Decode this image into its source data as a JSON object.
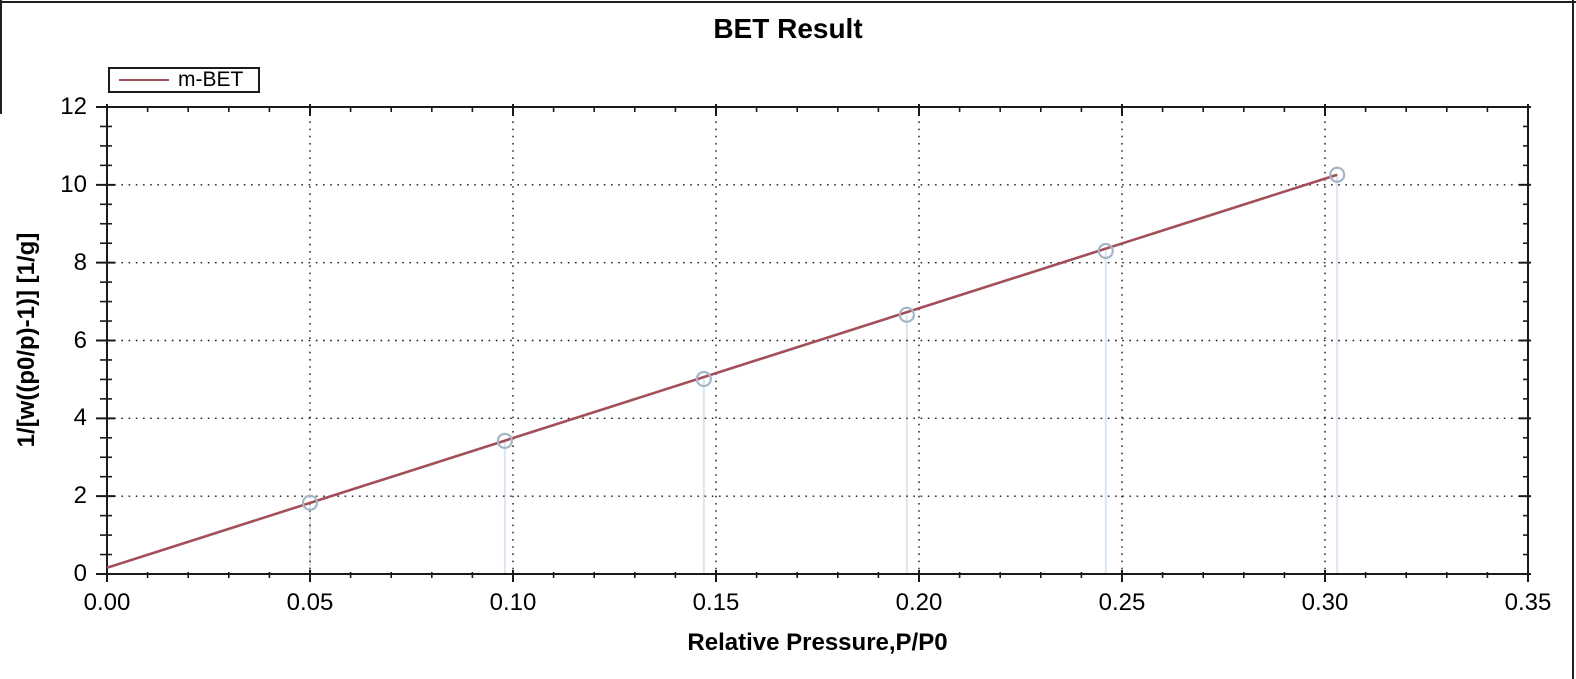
{
  "window": {
    "background": "#ffffff",
    "border_color": "#1f1f1f"
  },
  "chart_data": {
    "type": "line",
    "title": "BET Result",
    "xlabel": "Relative Pressure,P/P0",
    "ylabel": "1/[w((p0/p)-1)] [1/g]",
    "legend": {
      "position": "top-left",
      "label": "m-BET",
      "line_color": "#a24f59"
    },
    "axes": {
      "x": {
        "min": 0,
        "max": 0.35,
        "major_step": 0.05,
        "minor_step": 0.01,
        "tick_labels": [
          "0.00",
          "0.05",
          "0.10",
          "0.15",
          "0.20",
          "0.25",
          "0.30",
          "0.35"
        ]
      },
      "y": {
        "min": 0,
        "max": 12,
        "major_step": 2,
        "minor_step": 0.5,
        "tick_labels": [
          "0",
          "2",
          "4",
          "6",
          "8",
          "10",
          "12"
        ]
      }
    },
    "grid": {
      "shown": true,
      "style": "dotted",
      "color": "#1a1a1a"
    },
    "fit_line": {
      "name": "m-BET",
      "color": "#a24f59",
      "x": [
        0,
        0.303
      ],
      "y": [
        0.16,
        10.26
      ]
    },
    "scatter": {
      "marker": "open-circle",
      "marker_color": "#a4b6c6",
      "dropline_color": "#d8e5f2",
      "points": [
        {
          "x": 0.05,
          "y": 1.83
        },
        {
          "x": 0.098,
          "y": 3.42
        },
        {
          "x": 0.147,
          "y": 5.01
        },
        {
          "x": 0.197,
          "y": 6.66
        },
        {
          "x": 0.246,
          "y": 8.3
        },
        {
          "x": 0.303,
          "y": 10.26
        }
      ]
    }
  }
}
